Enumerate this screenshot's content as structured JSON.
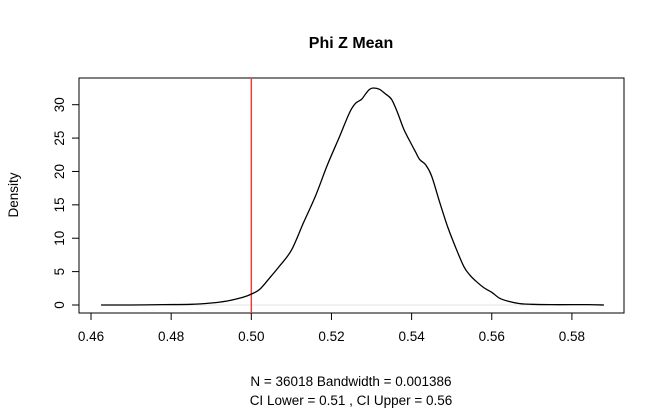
{
  "chart_data": {
    "type": "line",
    "title": "Phi Z Mean",
    "xlabel": "N = 36018   Bandwidth = 0.001386",
    "xlabel_line2": "CI Lower =  0.51 , CI Upper =  0.56",
    "ylabel": "Density",
    "xlim": [
      0.457,
      0.593
    ],
    "ylim": [
      -1.2,
      34.0
    ],
    "x_ticks": [
      0.46,
      0.48,
      0.5,
      0.52,
      0.54,
      0.56,
      0.58
    ],
    "x_tick_labels": [
      "0.46",
      "0.48",
      "0.50",
      "0.52",
      "0.54",
      "0.56",
      "0.58"
    ],
    "y_ticks": [
      0,
      5,
      10,
      15,
      20,
      25,
      30
    ],
    "y_tick_labels": [
      "0",
      "5",
      "10",
      "15",
      "20",
      "25",
      "30"
    ],
    "grid": false,
    "reference_line": {
      "x": 0.5,
      "color": "#e8413c"
    },
    "series": [
      {
        "color": "#000000",
        "x": [
          0.4625,
          0.47,
          0.478,
          0.485,
          0.49,
          0.494,
          0.497,
          0.4995,
          0.502,
          0.5045,
          0.507,
          0.51,
          0.513,
          0.516,
          0.519,
          0.522,
          0.5245,
          0.526,
          0.5275,
          0.5285,
          0.5295,
          0.5305,
          0.532,
          0.5335,
          0.535,
          0.5365,
          0.538,
          0.5395,
          0.541,
          0.542,
          0.5435,
          0.545,
          0.547,
          0.549,
          0.551,
          0.553,
          0.5545,
          0.556,
          0.558,
          0.56,
          0.562,
          0.5645,
          0.567,
          0.57,
          0.575,
          0.58,
          0.584,
          0.588
        ],
        "y": [
          0.0,
          0.0,
          0.05,
          0.1,
          0.3,
          0.6,
          1.0,
          1.5,
          2.3,
          4.0,
          5.8,
          8.2,
          12.3,
          16.3,
          21.0,
          25.2,
          28.8,
          30.2,
          30.8,
          31.6,
          32.3,
          32.5,
          32.3,
          31.6,
          30.8,
          28.8,
          26.4,
          24.6,
          22.9,
          21.8,
          21.0,
          19.3,
          15.4,
          11.7,
          8.6,
          5.8,
          4.5,
          3.6,
          2.6,
          1.9,
          1.0,
          0.5,
          0.2,
          0.1,
          0.05,
          0.05,
          0.05,
          0.0
        ]
      }
    ]
  }
}
